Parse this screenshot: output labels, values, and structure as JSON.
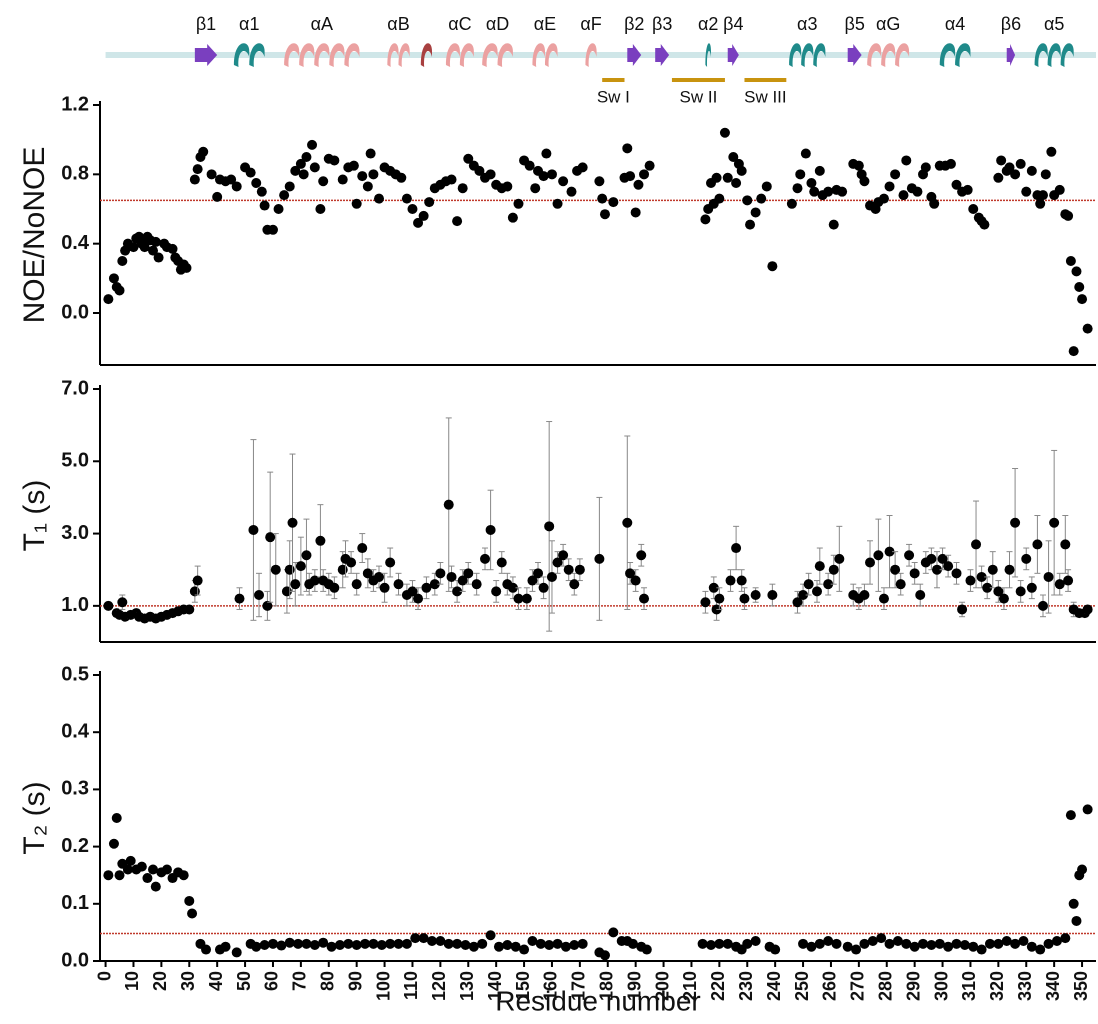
{
  "structure": {
    "backbone_color": "#cfe6e8",
    "switch_color": "#c8930f",
    "xlim": [
      -2,
      355
    ],
    "elements": [
      {
        "label": "β1",
        "start": 32,
        "end": 40,
        "kind": "strand",
        "color": "#7a3fbf"
      },
      {
        "label": "α1",
        "start": 46,
        "end": 57,
        "kind": "helix",
        "color": "#1f8a8a"
      },
      {
        "label": "αA",
        "start": 64,
        "end": 91,
        "kind": "helix",
        "color": "#eba1a1"
      },
      {
        "label": "αB",
        "start": 101,
        "end": 109,
        "kind": "helix",
        "color": "#eba1a1"
      },
      {
        "label": null,
        "start": 113,
        "end": 117,
        "kind": "helix",
        "color": "#a84040"
      },
      {
        "label": "αC",
        "start": 122,
        "end": 132,
        "kind": "helix",
        "color": "#eba1a1"
      },
      {
        "label": "αD",
        "start": 135,
        "end": 146,
        "kind": "helix",
        "color": "#eba1a1"
      },
      {
        "label": "αE",
        "start": 153,
        "end": 162,
        "kind": "helix",
        "color": "#eba1a1"
      },
      {
        "label": "αF",
        "start": 172,
        "end": 176,
        "kind": "helix",
        "color": "#eba1a1"
      },
      {
        "label": "β2",
        "start": 187,
        "end": 192,
        "kind": "strand",
        "color": "#7a3fbf"
      },
      {
        "label": "β3",
        "start": 197,
        "end": 202,
        "kind": "strand",
        "color": "#7a3fbf"
      },
      {
        "label": "α2",
        "start": 215,
        "end": 217,
        "kind": "helix",
        "color": "#1f8a8a"
      },
      {
        "label": "β4",
        "start": 223,
        "end": 227,
        "kind": "strand",
        "color": "#7a3fbf"
      },
      {
        "label": "α3",
        "start": 245,
        "end": 258,
        "kind": "helix",
        "color": "#1f8a8a"
      },
      {
        "label": "β5",
        "start": 266,
        "end": 271,
        "kind": "strand",
        "color": "#7a3fbf"
      },
      {
        "label": "αG",
        "start": 273,
        "end": 288,
        "kind": "helix",
        "color": "#eba1a1"
      },
      {
        "label": "α4",
        "start": 299,
        "end": 310,
        "kind": "helix",
        "color": "#1f8a8a"
      },
      {
        "label": "β6",
        "start": 323,
        "end": 326,
        "kind": "strand",
        "color": "#7a3fbf"
      },
      {
        "label": "α5",
        "start": 333,
        "end": 347,
        "kind": "helix",
        "color": "#1f8a8a"
      }
    ],
    "switches": [
      {
        "label": "Sw I",
        "start": 178,
        "end": 186
      },
      {
        "label": "Sw II",
        "start": 203,
        "end": 222
      },
      {
        "label": "Sw III",
        "start": 229,
        "end": 244
      }
    ]
  },
  "chart_data": [
    {
      "type": "scatter",
      "ylabel": "NOE/NoNOE",
      "xlim": [
        -2,
        355
      ],
      "ylim": [
        -0.3,
        1.2
      ],
      "yticks": [
        {
          "value": 0,
          "label": "0.0"
        },
        0.4,
        0.8,
        1.2
      ],
      "reference": 0.65,
      "reference_color": "#c0392b",
      "marker_color": "#000000",
      "x": [
        1,
        3,
        4,
        5,
        6,
        7,
        8,
        10,
        11,
        12,
        13,
        14,
        15,
        16,
        17,
        18,
        19,
        21,
        22,
        24,
        25,
        26,
        27,
        28,
        29,
        32,
        33,
        34,
        35,
        38,
        40,
        41,
        43,
        45,
        47,
        50,
        52,
        54,
        56,
        57,
        58,
        60,
        62,
        64,
        66,
        68,
        70,
        71,
        72,
        74,
        75,
        77,
        78,
        80,
        82,
        85,
        87,
        89,
        90,
        92,
        94,
        95,
        96,
        98,
        100,
        102,
        104,
        106,
        108,
        110,
        112,
        114,
        116,
        118,
        120,
        122,
        124,
        126,
        128,
        130,
        132,
        134,
        136,
        138,
        140,
        142,
        144,
        146,
        148,
        150,
        152,
        154,
        155,
        157,
        158,
        160,
        162,
        164,
        167,
        169,
        171,
        177,
        178,
        179,
        182,
        186,
        187,
        188,
        190,
        191,
        193,
        195,
        215,
        216,
        217,
        218,
        219,
        220,
        222,
        223,
        225,
        226,
        227,
        228,
        230,
        231,
        233,
        235,
        237,
        239,
        246,
        248,
        249,
        251,
        253,
        254,
        256,
        257,
        259,
        261,
        262,
        264,
        268,
        270,
        271,
        272,
        274,
        276,
        277,
        279,
        281,
        283,
        286,
        287,
        289,
        291,
        293,
        294,
        296,
        297,
        299,
        301,
        303,
        305,
        307,
        309,
        311,
        313,
        314,
        315,
        320,
        321,
        323,
        324,
        326,
        328,
        330,
        332,
        334,
        335,
        336,
        337,
        339,
        340,
        342,
        344,
        345,
        346,
        347,
        348,
        349,
        350,
        352
      ],
      "values": [
        0.08,
        0.2,
        0.15,
        0.13,
        0.3,
        0.36,
        0.4,
        0.38,
        0.43,
        0.44,
        0.4,
        0.38,
        0.44,
        0.42,
        0.36,
        0.41,
        0.32,
        0.4,
        0.38,
        0.37,
        0.32,
        0.3,
        0.25,
        0.28,
        0.26,
        0.77,
        0.83,
        0.9,
        0.93,
        0.8,
        0.67,
        0.77,
        0.76,
        0.77,
        0.73,
        0.84,
        0.81,
        0.75,
        0.7,
        0.62,
        0.48,
        0.48,
        0.6,
        0.68,
        0.73,
        0.82,
        0.86,
        0.8,
        0.9,
        0.97,
        0.84,
        0.6,
        0.76,
        0.89,
        0.88,
        0.77,
        0.84,
        0.85,
        0.63,
        0.79,
        0.73,
        0.92,
        0.8,
        0.66,
        0.84,
        0.82,
        0.8,
        0.78,
        0.66,
        0.6,
        0.52,
        0.56,
        0.64,
        0.72,
        0.74,
        0.76,
        0.77,
        0.53,
        0.72,
        0.89,
        0.85,
        0.82,
        0.78,
        0.8,
        0.74,
        0.72,
        0.73,
        0.55,
        0.63,
        0.88,
        0.85,
        0.72,
        0.82,
        0.79,
        0.92,
        0.8,
        0.63,
        0.76,
        0.7,
        0.82,
        0.84,
        0.76,
        0.66,
        0.57,
        0.64,
        0.78,
        0.95,
        0.79,
        0.58,
        0.74,
        0.8,
        0.85,
        0.54,
        0.6,
        0.75,
        0.63,
        0.78,
        0.66,
        1.04,
        0.78,
        0.9,
        0.75,
        0.86,
        0.82,
        0.65,
        0.51,
        0.58,
        0.66,
        0.73,
        0.27,
        0.63,
        0.72,
        0.8,
        0.92,
        0.75,
        0.7,
        0.82,
        0.68,
        0.7,
        0.51,
        0.71,
        0.7,
        0.86,
        0.85,
        0.8,
        0.76,
        0.62,
        0.6,
        0.64,
        0.66,
        0.73,
        0.8,
        0.68,
        0.88,
        0.72,
        0.7,
        0.8,
        0.84,
        0.67,
        0.63,
        0.85,
        0.85,
        0.86,
        0.74,
        0.7,
        0.71,
        0.6,
        0.55,
        0.53,
        0.51,
        0.78,
        0.88,
        0.82,
        0.84,
        0.8,
        0.86,
        0.7,
        0.82,
        0.68,
        0.63,
        0.68,
        0.8,
        0.93,
        0.68,
        0.71,
        0.57,
        0.56,
        0.3,
        -0.22,
        0.24,
        0.15,
        0.08,
        -0.09
      ]
    },
    {
      "type": "scatter",
      "ylabel": "T₁ (s)",
      "xlim": [
        -2,
        355
      ],
      "ylim": [
        0,
        7
      ],
      "yticks": [
        {
          "value": 1,
          "label": "1.0"
        },
        {
          "value": 3,
          "label": "3.0"
        },
        {
          "value": 5,
          "label": "5.0"
        },
        {
          "value": 7,
          "label": "7.0"
        }
      ],
      "reference": 1.0,
      "reference_color": "#c0392b",
      "marker_color": "#000000",
      "error_color": "#888888",
      "x": [
        1,
        4,
        5,
        6,
        7,
        9,
        11,
        12,
        14,
        16,
        18,
        20,
        22,
        24,
        26,
        28,
        30,
        32,
        33,
        48,
        53,
        55,
        58,
        59,
        61,
        65,
        66,
        67,
        68,
        70,
        72,
        73,
        75,
        77,
        78,
        80,
        82,
        85,
        86,
        88,
        90,
        92,
        94,
        96,
        98,
        100,
        102,
        105,
        108,
        110,
        112,
        115,
        118,
        120,
        123,
        124,
        126,
        128,
        130,
        133,
        136,
        138,
        140,
        142,
        144,
        146,
        148,
        151,
        153,
        155,
        157,
        159,
        160,
        162,
        164,
        166,
        168,
        170,
        177,
        187,
        188,
        190,
        192,
        193,
        215,
        218,
        219,
        220,
        224,
        226,
        228,
        229,
        233,
        239,
        248,
        250,
        252,
        255,
        256,
        259,
        261,
        263,
        268,
        270,
        272,
        274,
        277,
        279,
        281,
        283,
        285,
        288,
        290,
        292,
        294,
        296,
        298,
        300,
        302,
        305,
        307,
        310,
        312,
        314,
        316,
        318,
        320,
        322,
        324,
        326,
        328,
        330,
        332,
        334,
        336,
        338,
        340,
        342,
        344,
        345,
        347,
        349,
        351,
        352
      ],
      "values": [
        1.0,
        0.8,
        0.75,
        1.1,
        0.7,
        0.75,
        0.8,
        0.7,
        0.65,
        0.7,
        0.65,
        0.7,
        0.75,
        0.8,
        0.85,
        0.9,
        0.9,
        1.4,
        1.7,
        1.2,
        3.1,
        1.3,
        1.0,
        2.9,
        2.0,
        1.4,
        2.0,
        3.3,
        1.6,
        2.1,
        2.4,
        1.6,
        1.7,
        2.8,
        1.7,
        1.6,
        1.5,
        2.0,
        2.3,
        2.2,
        1.6,
        2.6,
        1.9,
        1.7,
        1.8,
        1.5,
        2.2,
        1.6,
        1.3,
        1.4,
        1.2,
        1.5,
        1.6,
        1.9,
        3.8,
        1.8,
        1.4,
        1.7,
        1.9,
        1.6,
        2.3,
        3.1,
        1.4,
        2.2,
        1.6,
        1.5,
        1.2,
        1.2,
        1.7,
        1.9,
        1.5,
        3.2,
        1.8,
        2.2,
        2.4,
        2.0,
        1.6,
        2.0,
        2.3,
        3.3,
        1.9,
        1.7,
        2.4,
        1.2,
        1.1,
        1.5,
        0.9,
        1.2,
        1.7,
        2.6,
        1.7,
        1.2,
        1.3,
        1.3,
        1.1,
        1.3,
        1.6,
        1.4,
        2.1,
        1.6,
        2.0,
        2.3,
        1.3,
        1.2,
        1.3,
        2.2,
        2.4,
        1.2,
        2.5,
        2.0,
        1.6,
        2.4,
        1.9,
        1.3,
        2.2,
        2.3,
        2.0,
        2.3,
        2.1,
        1.9,
        0.9,
        1.7,
        2.7,
        1.8,
        1.5,
        2.0,
        1.4,
        1.2,
        2.0,
        3.3,
        1.4,
        2.3,
        1.5,
        2.7,
        1.0,
        1.8,
        3.3,
        1.6,
        2.7,
        1.7,
        0.9,
        0.8,
        0.8,
        0.9
      ],
      "errors": [
        0.1,
        0.1,
        0.1,
        0.2,
        0.1,
        0.1,
        0.1,
        0.1,
        0.1,
        0.1,
        0.1,
        0.1,
        0.1,
        0.1,
        0.1,
        0.1,
        0.1,
        0.3,
        0.4,
        0.3,
        2.5,
        0.6,
        0.4,
        1.8,
        1.0,
        0.6,
        0.8,
        1.9,
        0.6,
        0.8,
        1.0,
        0.3,
        0.3,
        1.0,
        0.3,
        0.3,
        0.3,
        0.5,
        0.5,
        0.3,
        0.3,
        0.4,
        0.4,
        0.3,
        0.3,
        0.4,
        0.4,
        0.3,
        0.3,
        0.3,
        0.3,
        0.3,
        0.3,
        0.3,
        2.4,
        0.3,
        0.3,
        0.3,
        0.3,
        0.3,
        0.3,
        1.1,
        0.3,
        0.3,
        0.3,
        0.3,
        0.3,
        0.3,
        0.3,
        0.3,
        0.3,
        2.9,
        1.0,
        0.3,
        0.3,
        0.3,
        0.3,
        0.3,
        1.7,
        2.4,
        0.3,
        0.3,
        0.3,
        0.3,
        0.3,
        0.3,
        0.3,
        0.3,
        0.3,
        0.6,
        0.3,
        0.3,
        0.2,
        0.3,
        0.3,
        0.3,
        0.3,
        0.3,
        0.5,
        0.3,
        0.4,
        0.9,
        0.3,
        0.3,
        0.3,
        0.6,
        1.0,
        0.3,
        1.0,
        0.5,
        0.3,
        0.3,
        0.3,
        0.3,
        0.3,
        0.3,
        0.5,
        0.3,
        0.3,
        0.3,
        0.2,
        0.3,
        1.2,
        0.3,
        0.3,
        0.5,
        0.3,
        0.3,
        0.5,
        1.5,
        0.3,
        0.3,
        0.3,
        0.8,
        0.3,
        1.0,
        2.0,
        0.3,
        0.8,
        0.3,
        0.2,
        0.1,
        0.1,
        0.1
      ]
    },
    {
      "type": "scatter",
      "ylabel": "T₂ (s)",
      "xlabel": "Residue number",
      "xlim": [
        -2,
        355
      ],
      "ylim": [
        0,
        0.5
      ],
      "yticks": [
        {
          "value": 0,
          "label": "0.0"
        },
        0.1,
        0.2,
        0.3,
        0.4,
        0.5
      ],
      "xticks": [
        0,
        10,
        20,
        30,
        40,
        50,
        60,
        70,
        80,
        90,
        100,
        110,
        120,
        130,
        140,
        150,
        160,
        170,
        180,
        190,
        200,
        210,
        220,
        230,
        240,
        250,
        260,
        270,
        280,
        290,
        300,
        310,
        320,
        330,
        340,
        350
      ],
      "reference": 0.048,
      "reference_color": "#c0392b",
      "marker_color": "#000000",
      "x": [
        1,
        3,
        4,
        5,
        6,
        8,
        9,
        11,
        13,
        15,
        17,
        18,
        20,
        22,
        24,
        26,
        28,
        30,
        31,
        34,
        36,
        41,
        43,
        47,
        52,
        54,
        57,
        60,
        63,
        66,
        69,
        72,
        75,
        78,
        81,
        84,
        87,
        90,
        93,
        96,
        99,
        102,
        105,
        108,
        111,
        114,
        117,
        120,
        123,
        126,
        129,
        132,
        135,
        138,
        141,
        144,
        147,
        150,
        153,
        156,
        159,
        162,
        165,
        168,
        171,
        177,
        179,
        182,
        185,
        187,
        189,
        192,
        194,
        214,
        217,
        220,
        223,
        226,
        228,
        230,
        233,
        238,
        240,
        250,
        253,
        256,
        259,
        262,
        266,
        269,
        272,
        275,
        278,
        281,
        284,
        287,
        290,
        293,
        296,
        299,
        302,
        305,
        308,
        311,
        314,
        317,
        320,
        323,
        326,
        329,
        332,
        335,
        338,
        341,
        344,
        346,
        347,
        348,
        349,
        350,
        352
      ],
      "values": [
        0.15,
        0.205,
        0.25,
        0.15,
        0.17,
        0.16,
        0.175,
        0.16,
        0.165,
        0.145,
        0.16,
        0.13,
        0.155,
        0.16,
        0.145,
        0.155,
        0.15,
        0.105,
        0.083,
        0.03,
        0.02,
        0.02,
        0.025,
        0.015,
        0.03,
        0.025,
        0.028,
        0.03,
        0.027,
        0.032,
        0.03,
        0.03,
        0.028,
        0.032,
        0.025,
        0.028,
        0.03,
        0.028,
        0.03,
        0.03,
        0.028,
        0.03,
        0.03,
        0.03,
        0.04,
        0.04,
        0.035,
        0.035,
        0.03,
        0.03,
        0.028,
        0.025,
        0.03,
        0.045,
        0.025,
        0.028,
        0.025,
        0.02,
        0.035,
        0.03,
        0.028,
        0.03,
        0.025,
        0.028,
        0.03,
        0.015,
        0.01,
        0.05,
        0.035,
        0.035,
        0.03,
        0.025,
        0.02,
        0.03,
        0.028,
        0.03,
        0.03,
        0.025,
        0.02,
        0.03,
        0.035,
        0.025,
        0.02,
        0.03,
        0.025,
        0.03,
        0.035,
        0.03,
        0.025,
        0.02,
        0.03,
        0.035,
        0.04,
        0.03,
        0.035,
        0.03,
        0.025,
        0.03,
        0.028,
        0.03,
        0.025,
        0.03,
        0.028,
        0.025,
        0.02,
        0.03,
        0.03,
        0.035,
        0.03,
        0.035,
        0.025,
        0.02,
        0.03,
        0.035,
        0.04,
        0.255,
        0.1,
        0.07,
        0.15,
        0.16,
        0.265
      ]
    }
  ]
}
